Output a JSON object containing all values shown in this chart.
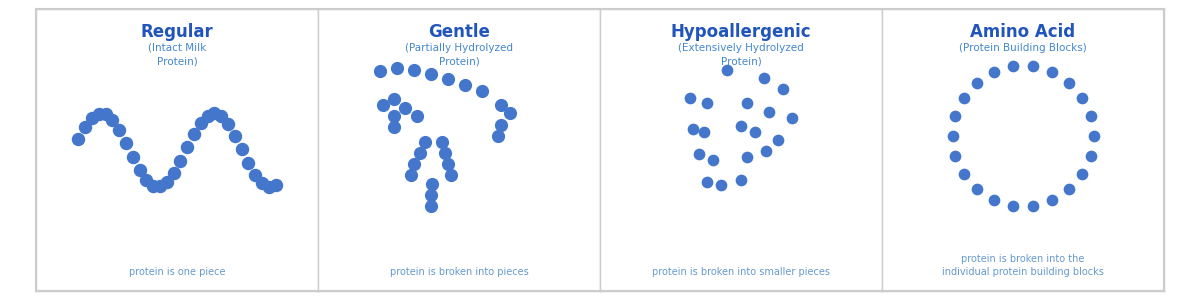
{
  "bg_color": "#ffffff",
  "border_color": "#cccccc",
  "dot_color": "#4477CC",
  "title_color": "#2255BB",
  "subtitle_color": "#4488CC",
  "caption_color": "#6699CC",
  "fig_width": 12.0,
  "fig_height": 3.0,
  "sections": [
    {
      "title": "Regular",
      "subtitle": "(Intact Milk\nProtein)",
      "caption": "protein is one piece",
      "shape": "worm"
    },
    {
      "title": "Gentle",
      "subtitle": "(Partially Hydrolyzed\nProtein)",
      "caption": "protein is broken into pieces",
      "shape": "pieces"
    },
    {
      "title": "Hypoallergenic",
      "subtitle": "(Extensively Hydrolyzed\nProtein)",
      "caption": "protein is broken into smaller pieces",
      "shape": "scatter"
    },
    {
      "title": "Amino Acid",
      "subtitle": "(Protein Building Blocks)",
      "caption": "protein is broken into the\nindividual protein building blocks",
      "shape": "ring"
    }
  ]
}
